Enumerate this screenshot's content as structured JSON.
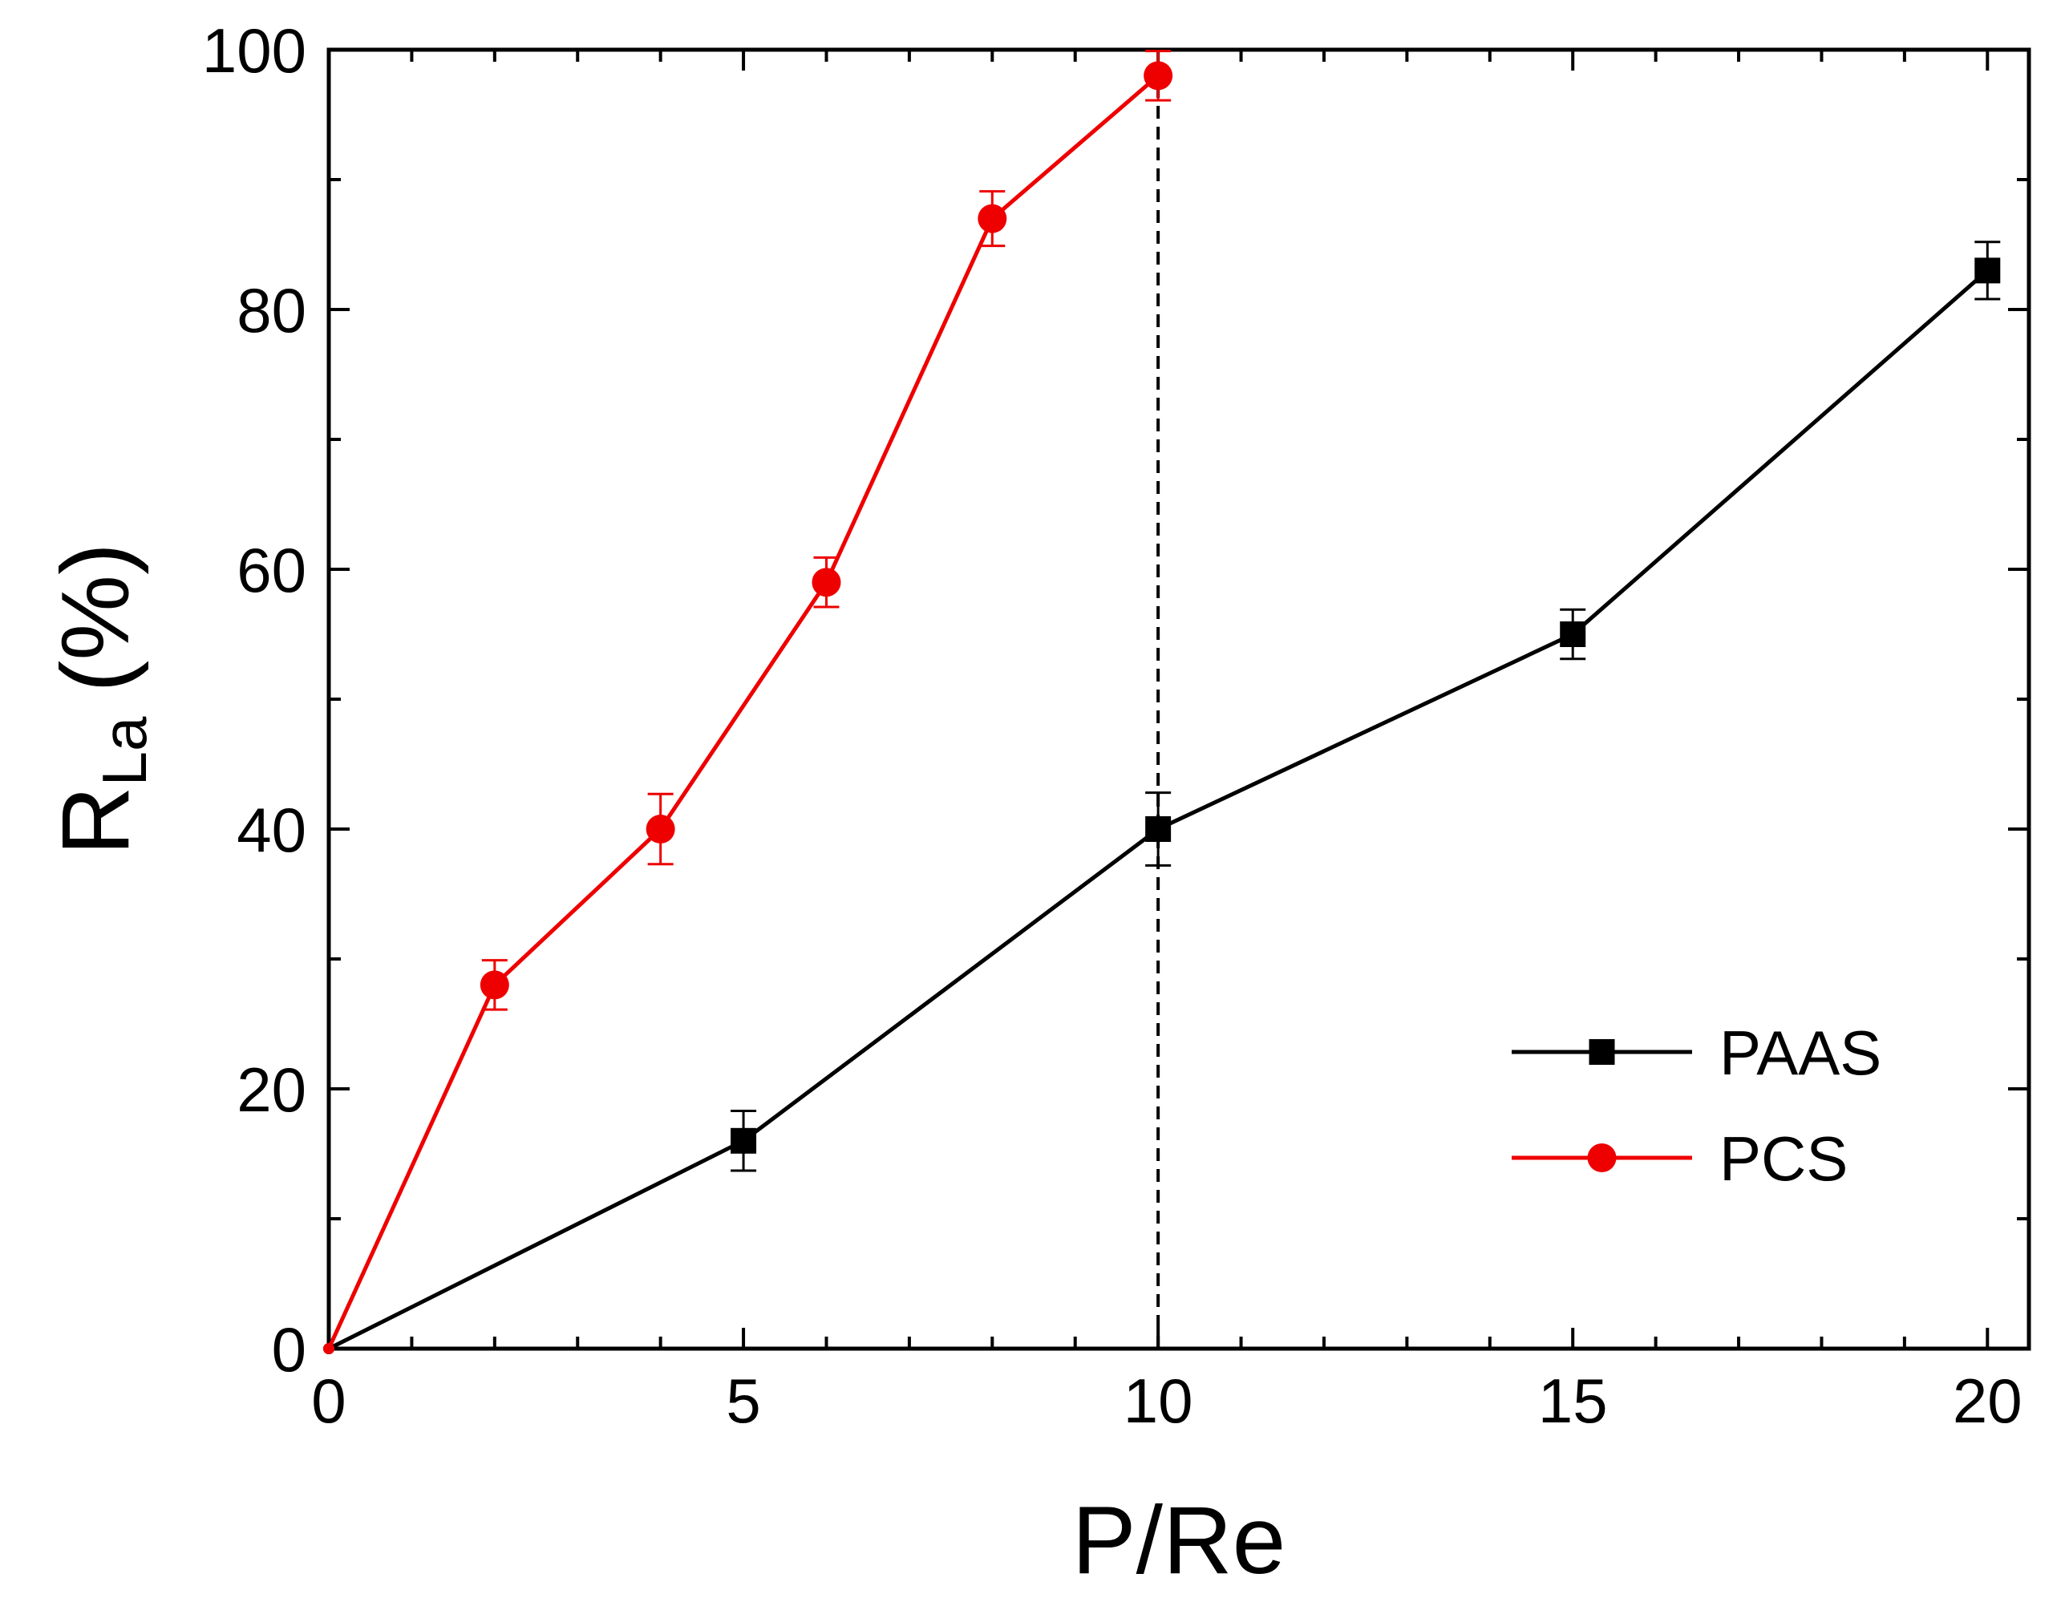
{
  "chart_data": {
    "type": "line",
    "title": "",
    "xlabel": "P/Re",
    "ylabel_main": "R",
    "ylabel_sub": "La",
    "ylabel_suffix": "(%)",
    "xlim": [
      0,
      20.5
    ],
    "ylim": [
      0,
      100
    ],
    "xticks": [
      0,
      5,
      10,
      15,
      20
    ],
    "yticks": [
      0,
      20,
      40,
      60,
      80,
      100
    ],
    "x_minor_step": 1,
    "y_minor_step": 10,
    "grid": false,
    "legend_position": "lower-right",
    "reference_line": {
      "x": 10,
      "style": "dashed",
      "from_y": 0,
      "to_y": 98
    },
    "series": [
      {
        "name": "PAAS",
        "color": "#000000",
        "marker": "square",
        "x": [
          0,
          5,
          10,
          15,
          20
        ],
        "y": [
          0,
          16,
          40,
          55,
          83
        ],
        "err": [
          0,
          2.3,
          2.8,
          1.9,
          2.2
        ]
      },
      {
        "name": "PCS",
        "color": "#ee0000",
        "marker": "circle",
        "x": [
          0,
          2,
          4,
          6,
          8,
          10
        ],
        "y": [
          0,
          28,
          40,
          59,
          87,
          98
        ],
        "err": [
          0,
          1.9,
          2.7,
          1.9,
          2.1,
          1.9
        ]
      }
    ]
  }
}
